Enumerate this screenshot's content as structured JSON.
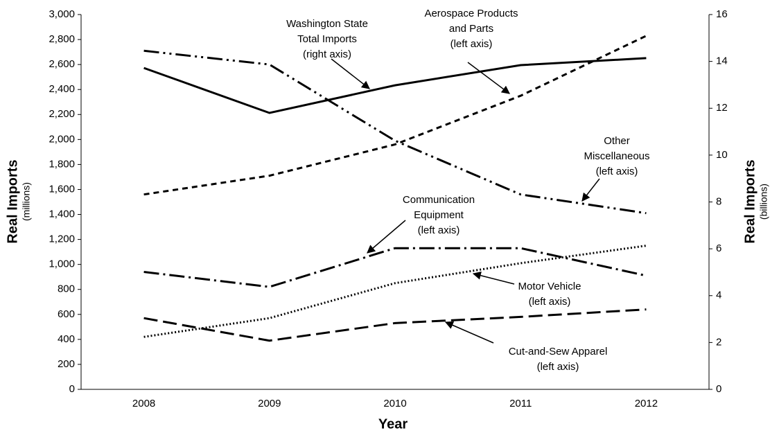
{
  "chart_data": {
    "type": "line",
    "x_label": "Year",
    "y_label": "Real Imports",
    "y_unit": "(millions)",
    "y2_label": "Real Imports",
    "y2_unit": "(billions)",
    "categories": [
      "2008",
      "2009",
      "2010",
      "2011",
      "2012"
    ],
    "ylim": [
      0,
      3000
    ],
    "yticks": [
      0,
      200,
      400,
      600,
      800,
      {
        "value": 1000,
        "label": "1,000"
      },
      {
        "value": 1200,
        "label": "1,200"
      },
      {
        "value": 1400,
        "label": "1,400"
      },
      {
        "value": 1600,
        "label": "1,600"
      },
      {
        "value": 1800,
        "label": "1,800"
      },
      {
        "value": 2000,
        "label": "2,000"
      },
      {
        "value": 2200,
        "label": "2,200"
      },
      {
        "value": 2400,
        "label": "2,400"
      },
      {
        "value": 2600,
        "label": "2,600"
      },
      {
        "value": 2800,
        "label": "2,800"
      },
      {
        "value": 3000,
        "label": "3,000"
      }
    ],
    "y2lim": [
      0,
      16
    ],
    "y2ticks": [
      0,
      2,
      4,
      6,
      8,
      10,
      12,
      14,
      16
    ],
    "series": [
      {
        "label": [
          "Washington State",
          "Total Imports",
          "(right axis)"
        ],
        "axis": "y2",
        "color": "#000000",
        "dash": "solid",
        "values": [
          13.72,
          11.8,
          12.98,
          13.84,
          14.14
        ]
      },
      {
        "label": [
          "Aerospace Products",
          "and Parts",
          "(left axis)"
        ],
        "color": "#000000",
        "dash": "8,6",
        "values": [
          1560,
          1710,
          1960,
          2350,
          2830
        ]
      },
      {
        "label": [
          "Other",
          "Miscellaneous",
          "(left axis)"
        ],
        "color": "#000000",
        "dash": "22,6,3,6,3,6",
        "values": [
          2710,
          2600,
          1990,
          1560,
          1410
        ]
      },
      {
        "label": [
          "Communication",
          "Equipment",
          "(left axis)"
        ],
        "color": "#000000",
        "dash": "22,6,3,6",
        "values": [
          940,
          820,
          1130,
          1130,
          910
        ]
      },
      {
        "label": [
          "Motor Vehicle",
          "(left axis)"
        ],
        "color": "#000000",
        "dash": "2,3",
        "values": [
          420,
          570,
          850,
          1010,
          1150
        ]
      },
      {
        "label": [
          "Cut-and-Sew Apparel",
          "(left axis)"
        ],
        "color": "#000000",
        "dash": "20,8",
        "values": [
          570,
          390,
          530,
          580,
          640
        ]
      }
    ]
  }
}
